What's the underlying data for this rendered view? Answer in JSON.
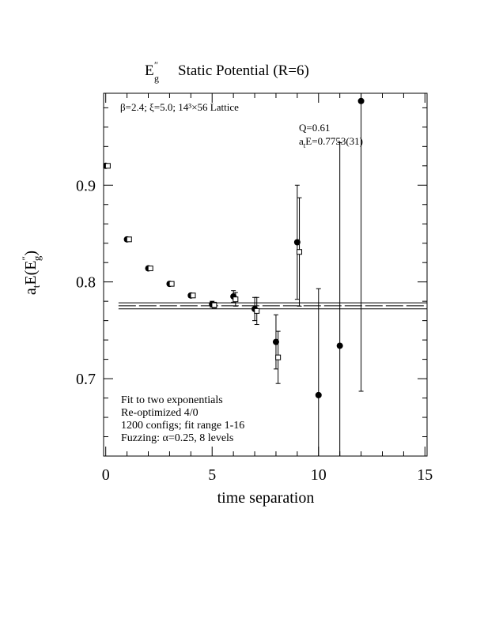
{
  "chart_data": {
    "type": "errorbar",
    "title": {
      "symbol": "E",
      "superscript": "″",
      "subscript": "g",
      "text": "Static Potential (R=6)"
    },
    "x_label": "time separation",
    "y_label": {
      "a": "a",
      "a_sub": "t",
      "mid": "E(E",
      "superscript": "″",
      "subscript": "g",
      "end": ")"
    },
    "annotations": {
      "lattice": "β=2.4; ξ=5.0; 14³×56 Lattice",
      "q": "Q=0.61",
      "fit_a": "a",
      "fit_sub": "t",
      "fit_text": "E=0.7753(31)",
      "notes": [
        "Fit to two exponentials",
        "Re-optimized 4/0",
        "1200 configs; fit range 1-16",
        "Fuzzing: α=0.25, 8 levels"
      ]
    },
    "series": [
      {
        "marker": "circle",
        "color": "#000000",
        "x": [
          0,
          1,
          2,
          3,
          4,
          5,
          6,
          7,
          8,
          9,
          10,
          11,
          12
        ],
        "values": [
          0.92,
          0.844,
          0.814,
          0.798,
          0.786,
          0.777,
          0.785,
          0.772,
          0.738,
          0.841,
          0.683,
          0.734,
          0.987
        ],
        "errors": [
          0.002,
          0.002,
          0.002,
          0.002,
          0.002,
          0.003,
          0.006,
          0.012,
          0.028,
          0.059,
          0.11,
          0.21,
          0.3
        ]
      },
      {
        "marker": "square",
        "color": "#000000",
        "x": [
          0.1,
          1.1,
          2.1,
          3.1,
          4.1,
          5.1,
          6.1,
          7.1,
          8.1,
          9.1
        ],
        "values": [
          0.92,
          0.844,
          0.814,
          0.798,
          0.786,
          0.776,
          0.782,
          0.77,
          0.722,
          0.831
        ],
        "errors": [
          0.002,
          0.002,
          0.002,
          0.002,
          0.002,
          0.003,
          0.007,
          0.014,
          0.027,
          0.056
        ]
      }
    ],
    "fit": {
      "value": 0.7753,
      "error": 0.0031,
      "x": [
        0.6,
        15.1
      ]
    },
    "xlim": [
      -0.1,
      15.1
    ],
    "ylim": [
      0.62,
      0.995
    ],
    "xticks": [
      0,
      5,
      10,
      15
    ],
    "yticks": [
      0.7,
      0.8,
      0.9
    ],
    "xminorticks": [
      1,
      2,
      3,
      4,
      6,
      7,
      8,
      9,
      11,
      12,
      13,
      14
    ],
    "yminorticks": [
      0.64,
      0.66,
      0.68,
      0.72,
      0.74,
      0.76,
      0.78,
      0.82,
      0.84,
      0.86,
      0.88,
      0.92,
      0.94,
      0.96,
      0.98
    ]
  }
}
